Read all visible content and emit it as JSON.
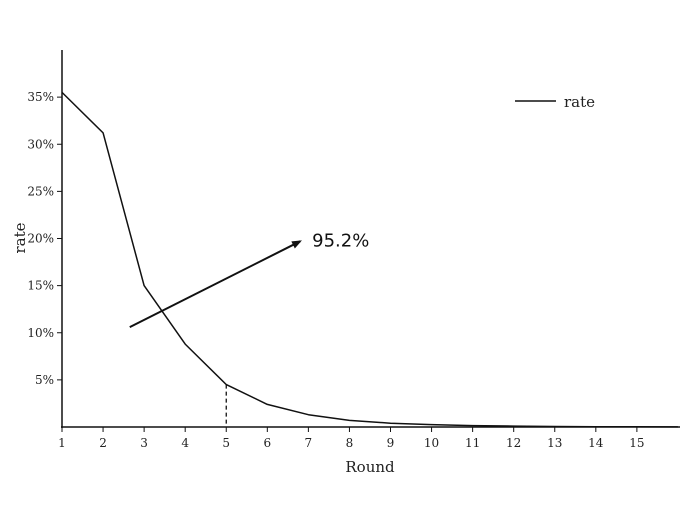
{
  "chart_data": {
    "type": "line",
    "title": "",
    "xlabel": "Round",
    "ylabel": "rate",
    "x_ticks": [
      1,
      2,
      3,
      4,
      5,
      6,
      7,
      8,
      9,
      10,
      11,
      12,
      13,
      14,
      15
    ],
    "y_ticks": [
      "5%",
      "10%",
      "15%",
      "20%",
      "25%",
      "30%",
      "35%"
    ],
    "xlim": [
      1,
      16.05
    ],
    "ylim": [
      0,
      40
    ],
    "grid": false,
    "legend": {
      "position": "top-right",
      "entries": [
        "rate"
      ]
    },
    "series": [
      {
        "name": "rate",
        "color": "#111111",
        "x": [
          1,
          2,
          3,
          4,
          5,
          6,
          7,
          8,
          9,
          10,
          11,
          12,
          13,
          14,
          15,
          16
        ],
        "y": [
          35.5,
          31.2,
          15.0,
          8.8,
          4.5,
          2.4,
          1.3,
          0.7,
          0.4,
          0.25,
          0.15,
          0.1,
          0.05,
          0.03,
          0.02,
          0.01
        ]
      }
    ],
    "annotations": [
      {
        "type": "dropline",
        "x": 5,
        "y": 4.5
      },
      {
        "type": "arrow",
        "text": "95.2%",
        "from": [
          2.65,
          10.6
        ],
        "to": [
          6.8,
          19.7
        ]
      }
    ]
  }
}
